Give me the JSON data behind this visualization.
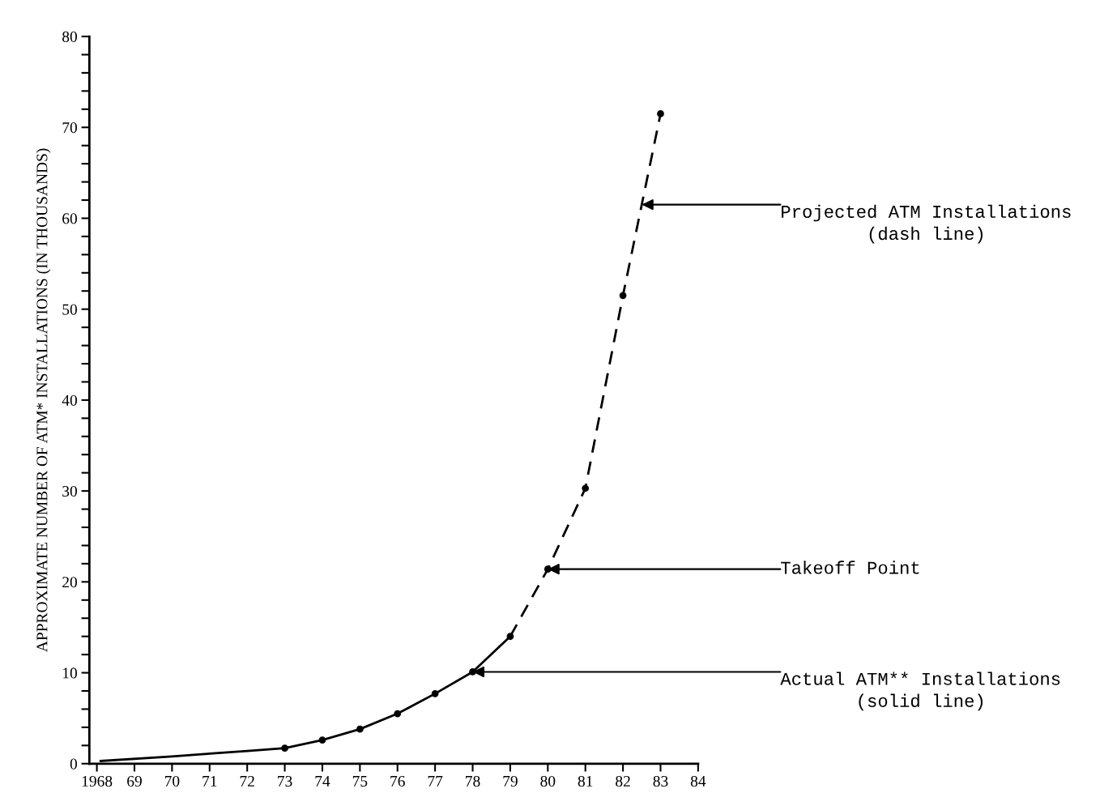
{
  "chart_data": {
    "type": "line",
    "ylabel": "APPROXIMATE NUMBER OF ATM* INSTALLATIONS (IN THOUSANDS)",
    "xlim": [
      1967.8,
      1984
    ],
    "ylim": [
      0,
      80
    ],
    "xticks": [
      {
        "value": 1968,
        "label": "1968"
      },
      {
        "value": 1969,
        "label": "69"
      },
      {
        "value": 1970,
        "label": "70"
      },
      {
        "value": 1971,
        "label": "71"
      },
      {
        "value": 1972,
        "label": "72"
      },
      {
        "value": 1973,
        "label": "73"
      },
      {
        "value": 1974,
        "label": "74"
      },
      {
        "value": 1975,
        "label": "75"
      },
      {
        "value": 1976,
        "label": "76"
      },
      {
        "value": 1977,
        "label": "77"
      },
      {
        "value": 1978,
        "label": "78"
      },
      {
        "value": 1979,
        "label": "79"
      },
      {
        "value": 1980,
        "label": "80"
      },
      {
        "value": 1981,
        "label": "81"
      },
      {
        "value": 1982,
        "label": "82"
      },
      {
        "value": 1983,
        "label": "83"
      },
      {
        "value": 1984,
        "label": "84"
      }
    ],
    "yticks": [
      0,
      {
        "value": 2,
        "label": null
      },
      {
        "value": 4,
        "label": null
      },
      {
        "value": 6,
        "label": null
      },
      {
        "value": 8,
        "label": null
      },
      10,
      {
        "value": 12,
        "label": null
      },
      {
        "value": 14,
        "label": null
      },
      {
        "value": 16,
        "label": null
      },
      {
        "value": 18,
        "label": null
      },
      20,
      {
        "value": 22,
        "label": null
      },
      {
        "value": 24,
        "label": null
      },
      {
        "value": 26,
        "label": null
      },
      {
        "value": 28,
        "label": null
      },
      30,
      {
        "value": 32,
        "label": null
      },
      {
        "value": 34,
        "label": null
      },
      {
        "value": 36,
        "label": null
      },
      {
        "value": 38,
        "label": null
      },
      40,
      {
        "value": 42,
        "label": null
      },
      {
        "value": 44,
        "label": null
      },
      {
        "value": 46,
        "label": null
      },
      {
        "value": 48,
        "label": null
      },
      50,
      {
        "value": 52,
        "label": null
      },
      {
        "value": 54,
        "label": null
      },
      {
        "value": 56,
        "label": null
      },
      {
        "value": 58,
        "label": null
      },
      60,
      {
        "value": 62,
        "label": null
      },
      {
        "value": 64,
        "label": null
      },
      {
        "value": 66,
        "label": null
      },
      {
        "value": 68,
        "label": null
      },
      70,
      {
        "value": 72,
        "label": null
      },
      {
        "value": 74,
        "label": null
      },
      {
        "value": 76,
        "label": null
      },
      {
        "value": 78,
        "label": null
      },
      80
    ],
    "grid": false,
    "legend": false,
    "series": [
      {
        "color": "#000000",
        "line_style": "solid",
        "marker": "none",
        "x": [
          1968.1,
          1970,
          1971,
          1972,
          1973,
          1974,
          1975,
          1976,
          1977,
          1978,
          1979
        ],
        "values": [
          0.3,
          0.8,
          1.1,
          1.4,
          1.7,
          2.6,
          3.8,
          5.5,
          7.7,
          10.1,
          14
        ]
      },
      {
        "color": "#000000",
        "line_style": "dashed",
        "marker": "none",
        "x": [
          1979,
          1980,
          1981,
          1982,
          1983
        ],
        "values": [
          14,
          21.4,
          30.3,
          51.5,
          71.5
        ]
      },
      {
        "type": "scatter",
        "color": "#000000",
        "marker": "circle",
        "x": [
          1973,
          1974,
          1975,
          1976,
          1977,
          1978,
          1979,
          1980,
          1981,
          1982,
          1983
        ],
        "values": [
          1.7,
          2.6,
          3.8,
          5.5,
          7.7,
          10.1,
          14,
          21.4,
          30.3,
          51.5,
          71.5
        ]
      }
    ],
    "annotations": [
      {
        "text": "Projected ATM Installations\n(dash line)",
        "x": 1982.5,
        "y": 61.5
      },
      {
        "text": "Takeoff Point",
        "x": 1980,
        "y": 21.4
      },
      {
        "text": "Actual ATM** Installations\n(solid line)",
        "x": 1978,
        "y": 10.1
      }
    ]
  }
}
